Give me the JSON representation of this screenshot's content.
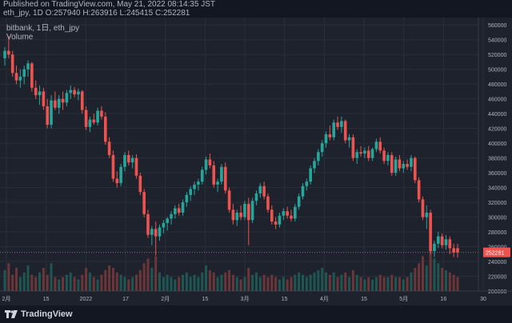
{
  "header": {
    "published": "Published on TradingView.com, May 21, 2022 08:14:35 JST",
    "ohlc": "eth_jpy, 1D O:257940 H:263916 L:245415 C:252281"
  },
  "legend": {
    "symbol": "bitbank, 1日, eth_jpy",
    "volume_label": "Volume"
  },
  "price_axis": {
    "ticks": [
      "560000",
      "540000",
      "520000",
      "500000",
      "480000",
      "460000",
      "440000",
      "420000",
      "400000",
      "380000",
      "360000",
      "340000",
      "320000",
      "300000",
      "280000",
      "260000",
      "240000",
      "220000",
      "200000"
    ],
    "last_price": "252281"
  },
  "time_axis": {
    "ticks": [
      "2月",
      "15",
      "2022",
      "17",
      "2月",
      "15",
      "3月",
      "15",
      "4月",
      "15",
      "5月",
      "16",
      "30"
    ]
  },
  "footer": {
    "brand": "TradingView"
  },
  "colors": {
    "up": "#26a69a",
    "down": "#ef5350",
    "background": "#1e222d",
    "grid": "#2a2e39",
    "axis_text": "#b2b5be",
    "price_tag": "#ef5350"
  },
  "chart_data": {
    "type": "candlestick",
    "y_range": [
      200000,
      570000
    ],
    "last_close": 252281,
    "ohlc_series": [
      [
        515000,
        530000,
        505000,
        525000
      ],
      [
        525000,
        545000,
        515000,
        520000
      ],
      [
        520000,
        525000,
        490000,
        495000
      ],
      [
        495000,
        505000,
        480000,
        485000
      ],
      [
        485000,
        500000,
        475000,
        490000
      ],
      [
        490000,
        505000,
        480000,
        500000
      ],
      [
        500000,
        512000,
        490000,
        508000
      ],
      [
        508000,
        510000,
        470000,
        475000
      ],
      [
        475000,
        485000,
        460000,
        465000
      ],
      [
        465000,
        478000,
        452000,
        470000
      ],
      [
        470000,
        475000,
        445000,
        450000
      ],
      [
        450000,
        460000,
        420000,
        425000
      ],
      [
        425000,
        465000,
        420000,
        458000
      ],
      [
        458000,
        470000,
        445000,
        448000
      ],
      [
        448000,
        465000,
        440000,
        460000
      ],
      [
        460000,
        470000,
        445000,
        455000
      ],
      [
        455000,
        472000,
        450000,
        468000
      ],
      [
        468000,
        478000,
        460000,
        472000
      ],
      [
        472000,
        476000,
        462000,
        466000
      ],
      [
        466000,
        474000,
        458000,
        470000
      ],
      [
        470000,
        472000,
        440000,
        445000
      ],
      [
        445000,
        450000,
        418000,
        422000
      ],
      [
        422000,
        436000,
        415000,
        432000
      ],
      [
        432000,
        440000,
        425000,
        428000
      ],
      [
        428000,
        448000,
        424000,
        444000
      ],
      [
        444000,
        450000,
        432000,
        436000
      ],
      [
        436000,
        442000,
        398000,
        402000
      ],
      [
        402000,
        408000,
        380000,
        384000
      ],
      [
        384000,
        390000,
        348000,
        352000
      ],
      [
        352000,
        362000,
        340000,
        346000
      ],
      [
        346000,
        372000,
        342000,
        368000
      ],
      [
        368000,
        388000,
        362000,
        384000
      ],
      [
        384000,
        390000,
        370000,
        374000
      ],
      [
        374000,
        384000,
        366000,
        380000
      ],
      [
        380000,
        385000,
        352000,
        356000
      ],
      [
        356000,
        360000,
        330000,
        334000
      ],
      [
        334000,
        338000,
        300000,
        304000
      ],
      [
        304000,
        310000,
        272000,
        276000
      ],
      [
        276000,
        288000,
        262000,
        284000
      ],
      [
        284000,
        294000,
        248000,
        274000
      ],
      [
        274000,
        290000,
        268000,
        286000
      ],
      [
        286000,
        296000,
        278000,
        292000
      ],
      [
        292000,
        300000,
        282000,
        298000
      ],
      [
        298000,
        308000,
        290000,
        304000
      ],
      [
        304000,
        316000,
        298000,
        312000
      ],
      [
        312000,
        318000,
        302000,
        306000
      ],
      [
        306000,
        324000,
        302000,
        320000
      ],
      [
        320000,
        334000,
        314000,
        330000
      ],
      [
        330000,
        342000,
        322000,
        338000
      ],
      [
        338000,
        348000,
        330000,
        344000
      ],
      [
        344000,
        352000,
        336000,
        348000
      ],
      [
        348000,
        368000,
        344000,
        364000
      ],
      [
        364000,
        382000,
        358000,
        378000
      ],
      [
        378000,
        386000,
        366000,
        370000
      ],
      [
        370000,
        376000,
        340000,
        344000
      ],
      [
        344000,
        352000,
        334000,
        348000
      ],
      [
        348000,
        372000,
        344000,
        368000
      ],
      [
        368000,
        374000,
        332000,
        336000
      ],
      [
        336000,
        340000,
        306000,
        310000
      ],
      [
        310000,
        318000,
        290000,
        296000
      ],
      [
        296000,
        310000,
        288000,
        306000
      ],
      [
        306000,
        316000,
        296000,
        300000
      ],
      [
        300000,
        322000,
        296000,
        318000
      ],
      [
        318000,
        326000,
        262000,
        296000
      ],
      [
        296000,
        326000,
        292000,
        322000
      ],
      [
        322000,
        336000,
        316000,
        332000
      ],
      [
        332000,
        346000,
        326000,
        342000
      ],
      [
        342000,
        348000,
        324000,
        328000
      ],
      [
        328000,
        332000,
        306000,
        310000
      ],
      [
        310000,
        316000,
        290000,
        294000
      ],
      [
        294000,
        300000,
        284000,
        290000
      ],
      [
        290000,
        306000,
        286000,
        302000
      ],
      [
        302000,
        312000,
        296000,
        308000
      ],
      [
        308000,
        314000,
        298000,
        302000
      ],
      [
        302000,
        310000,
        294000,
        298000
      ],
      [
        298000,
        318000,
        294000,
        314000
      ],
      [
        314000,
        332000,
        310000,
        328000
      ],
      [
        328000,
        346000,
        324000,
        342000
      ],
      [
        342000,
        352000,
        336000,
        348000
      ],
      [
        348000,
        370000,
        344000,
        366000
      ],
      [
        366000,
        380000,
        360000,
        376000
      ],
      [
        376000,
        392000,
        370000,
        388000
      ],
      [
        388000,
        404000,
        382000,
        400000
      ],
      [
        400000,
        416000,
        394000,
        412000
      ],
      [
        412000,
        424000,
        404000,
        408000
      ],
      [
        408000,
        432000,
        404000,
        428000
      ],
      [
        428000,
        436000,
        418000,
        422000
      ],
      [
        422000,
        436000,
        414000,
        430000
      ],
      [
        430000,
        432000,
        400000,
        404000
      ],
      [
        404000,
        412000,
        394000,
        408000
      ],
      [
        408000,
        412000,
        376000,
        380000
      ],
      [
        380000,
        392000,
        372000,
        388000
      ],
      [
        388000,
        396000,
        382000,
        386000
      ],
      [
        386000,
        394000,
        380000,
        390000
      ],
      [
        390000,
        396000,
        376000,
        380000
      ],
      [
        380000,
        394000,
        376000,
        392000
      ],
      [
        392000,
        406000,
        388000,
        402000
      ],
      [
        402000,
        408000,
        386000,
        390000
      ],
      [
        390000,
        394000,
        372000,
        376000
      ],
      [
        376000,
        388000,
        370000,
        384000
      ],
      [
        384000,
        388000,
        356000,
        360000
      ],
      [
        360000,
        382000,
        356000,
        378000
      ],
      [
        378000,
        384000,
        362000,
        366000
      ],
      [
        366000,
        376000,
        360000,
        372000
      ],
      [
        372000,
        378000,
        364000,
        368000
      ],
      [
        368000,
        384000,
        362000,
        380000
      ],
      [
        380000,
        382000,
        346000,
        350000
      ],
      [
        350000,
        354000,
        320000,
        324000
      ],
      [
        324000,
        328000,
        296000,
        300000
      ],
      [
        300000,
        316000,
        284000,
        306000
      ],
      [
        306000,
        310000,
        250000,
        254000
      ],
      [
        254000,
        268000,
        246000,
        264000
      ],
      [
        264000,
        280000,
        258000,
        274000
      ],
      [
        274000,
        278000,
        258000,
        262000
      ],
      [
        262000,
        276000,
        256000,
        270000
      ],
      [
        270000,
        274000,
        250000,
        258000
      ],
      [
        258000,
        264000,
        246000,
        252000
      ],
      [
        257940,
        263916,
        245415,
        252281
      ]
    ],
    "volume_max": 1,
    "volume_series": [
      0.45,
      0.6,
      0.35,
      0.5,
      0.3,
      0.4,
      0.55,
      0.35,
      0.3,
      0.4,
      0.5,
      0.35,
      0.6,
      0.3,
      0.25,
      0.3,
      0.35,
      0.4,
      0.3,
      0.25,
      0.35,
      0.5,
      0.4,
      0.3,
      0.25,
      0.35,
      0.45,
      0.55,
      0.5,
      0.4,
      0.35,
      0.3,
      0.25,
      0.3,
      0.35,
      0.45,
      0.6,
      0.7,
      0.5,
      0.75,
      0.4,
      0.3,
      0.35,
      0.3,
      0.25,
      0.3,
      0.35,
      0.4,
      0.3,
      0.35,
      0.3,
      0.4,
      0.55,
      0.45,
      0.4,
      0.3,
      0.35,
      0.4,
      0.45,
      0.35,
      0.3,
      0.25,
      0.3,
      0.5,
      0.35,
      0.4,
      0.3,
      0.35,
      0.3,
      0.35,
      0.3,
      0.25,
      0.3,
      0.25,
      0.3,
      0.35,
      0.4,
      0.35,
      0.3,
      0.35,
      0.4,
      0.45,
      0.5,
      0.4,
      0.35,
      0.4,
      0.3,
      0.35,
      0.4,
      0.3,
      0.45,
      0.35,
      0.3,
      0.25,
      0.3,
      0.25,
      0.3,
      0.35,
      0.3,
      0.3,
      0.35,
      0.3,
      0.3,
      0.25,
      0.3,
      0.4,
      0.5,
      0.6,
      0.75,
      0.55,
      0.9,
      0.7,
      0.6,
      0.5,
      0.45,
      0.4,
      0.35,
      0.3
    ]
  }
}
